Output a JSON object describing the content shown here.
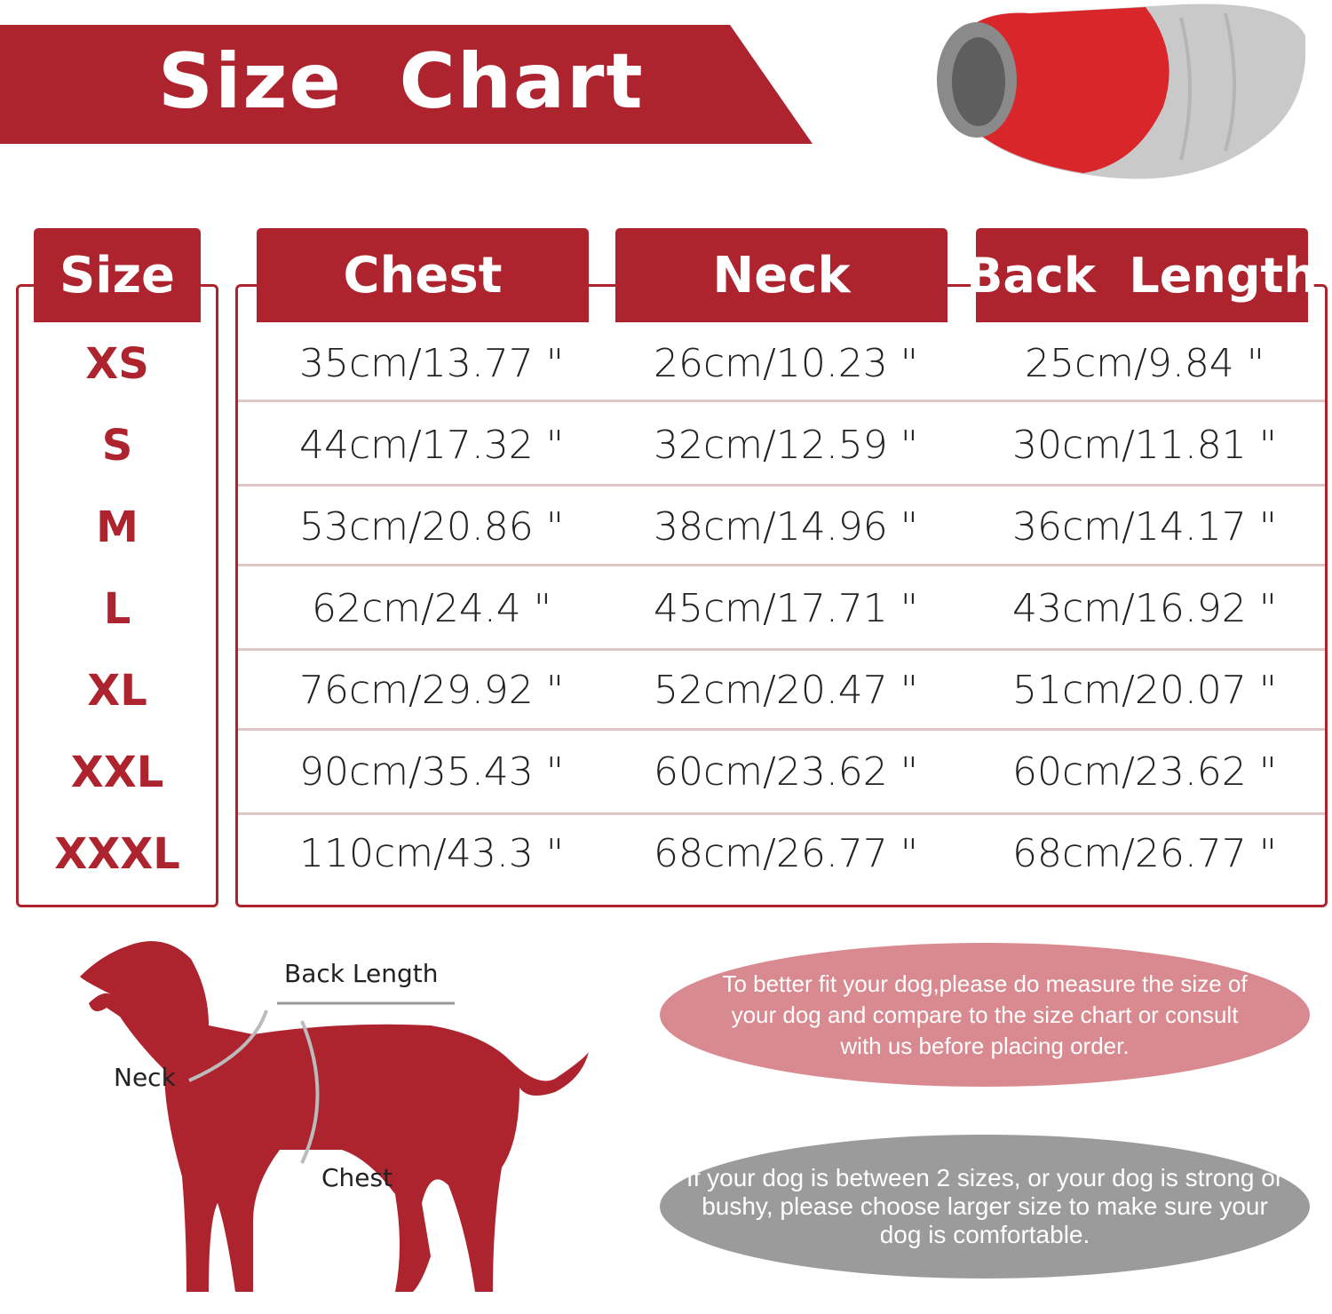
{
  "title": "Size  Chart",
  "headers": {
    "size": "Size",
    "chest": "Chest",
    "neck": "Neck",
    "back_length": "Back  Length"
  },
  "rows": [
    {
      "size": "XS",
      "chest": "35cm/13.77 \"",
      "neck": "26cm/10.23 \"",
      "back": "25cm/9.84 \""
    },
    {
      "size": "S",
      "chest": "44cm/17.32 \"",
      "neck": "32cm/12.59 \"",
      "back": "30cm/11.81 \""
    },
    {
      "size": "M",
      "chest": "53cm/20.86 \"",
      "neck": "38cm/14.96 \"",
      "back": "36cm/14.17 \""
    },
    {
      "size": "L",
      "chest": "62cm/24.4 \"",
      "neck": "45cm/17.71 \"",
      "back": "43cm/16.92 \""
    },
    {
      "size": "XL",
      "chest": "76cm/29.92 \"",
      "neck": "52cm/20.47 \"",
      "back": "51cm/20.07 \""
    },
    {
      "size": "XXL",
      "chest": "90cm/35.43 \"",
      "neck": "60cm/23.62 \"",
      "back": "60cm/23.62 \""
    },
    {
      "size": "XXXL",
      "chest": "110cm/43.3 \"",
      "neck": "68cm/26.77 \"",
      "back": "68cm/26.77 \""
    }
  ],
  "diagram": {
    "back_length": "Back  Length",
    "neck": "Neck",
    "chest": "Chest"
  },
  "notes": {
    "fit": "To better fit your dog,please do measure the size of your dog and compare to the size chart or consult with  us before placing order.",
    "between": "If your dog is between 2 sizes, or your dog is strong or bushy, please choose larger size to make sure your dog is comfortable."
  },
  "colors": {
    "brand_red": "#ad232e",
    "pink_note": "#d98a90",
    "gray_note": "#9b9b9b"
  }
}
